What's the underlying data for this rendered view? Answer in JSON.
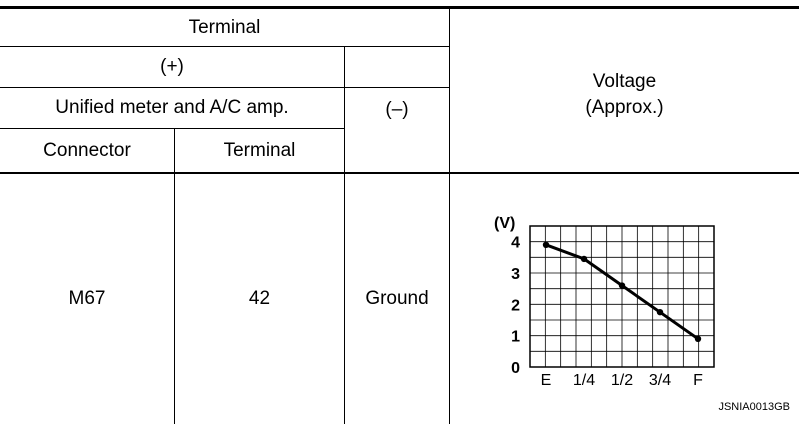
{
  "table": {
    "headers": {
      "terminal": "Terminal",
      "plus": "(+)",
      "unit_name": "Unified meter and A/C amp.",
      "minus": "(–)",
      "connector": "Connector",
      "terminal_sub": "Terminal",
      "voltage_line1": "Voltage",
      "voltage_line2": "(Approx.)"
    },
    "row": {
      "connector": "M67",
      "terminal": "42",
      "ground": "Ground"
    }
  },
  "chart_data": {
    "type": "line",
    "ylabel": "(V)",
    "y_ticks": [
      "0",
      "1",
      "2",
      "3",
      "4"
    ],
    "ylim": [
      0,
      4.5
    ],
    "categories": [
      "E",
      "1/4",
      "1/2",
      "3/4",
      "F"
    ],
    "grid": true,
    "series": [
      {
        "values": [
          3.9,
          3.45,
          2.6,
          1.75,
          0.9
        ]
      }
    ],
    "figure_id": "JSNIA0013GB"
  }
}
